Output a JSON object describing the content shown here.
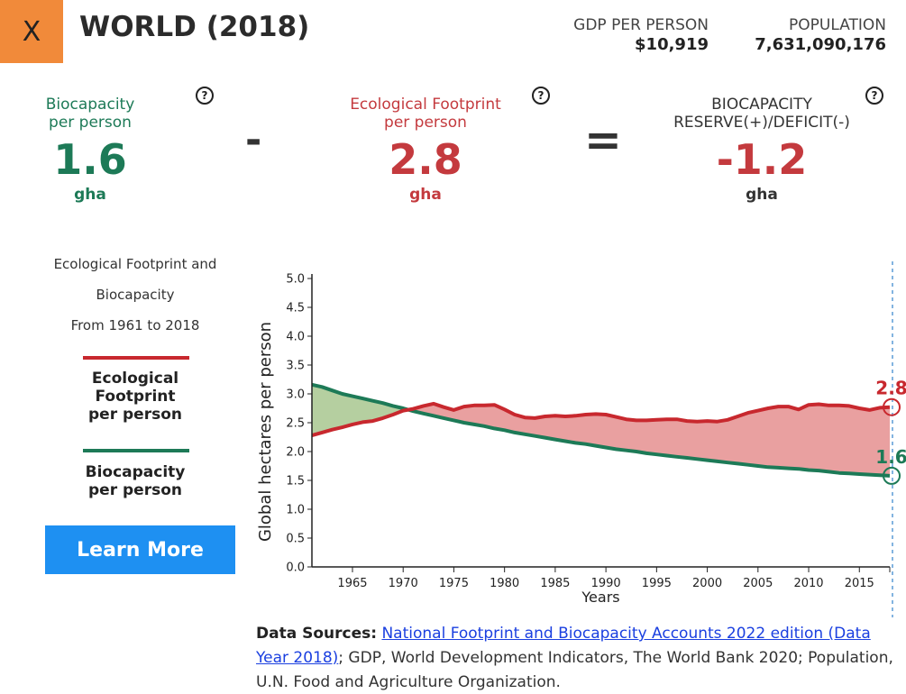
{
  "header": {
    "close_label": "X",
    "title": "WORLD (2018)",
    "gdp_label": "GDP PER PERSON",
    "gdp_value": "$10,919",
    "population_label": "POPULATION",
    "population_value": "7,631,090,176"
  },
  "metrics": {
    "biocapacity": {
      "label_line1": "Biocapacity",
      "label_line2": "per person",
      "value": "1.6",
      "unit": "gha"
    },
    "footprint": {
      "label_line1": "Ecological Footprint",
      "label_line2": "per person",
      "value": "2.8",
      "unit": "gha"
    },
    "reserve": {
      "label_line1": "BIOCAPACITY",
      "label_line2": "RESERVE(+)/DEFICIT(-)",
      "value": "-1.2",
      "unit": "gha"
    },
    "minus_symbol": "-",
    "equals_symbol": "=",
    "help_symbol": "?"
  },
  "sidebar": {
    "title_line1": "Ecological Footprint and",
    "title_line2": "Biocapacity",
    "title_line3": "From 1961 to 2018",
    "legend_footprint_line1": "Ecological",
    "legend_footprint_line2": "Footprint",
    "legend_footprint_line3": "per person",
    "legend_biocapacity_line1": "Biocapacity",
    "legend_biocapacity_line2": "per person",
    "learn_more_label": "Learn More"
  },
  "colors": {
    "footprint": "#c8282e",
    "footprint_fill": "#e9a0a0",
    "biocapacity": "#1d7a57",
    "biocapacity_fill": "#b5cfa0",
    "accent_close": "#f18a3a",
    "button": "#1e90f2"
  },
  "chart_data": {
    "type": "area",
    "xlabel": "Years",
    "ylabel": "Global hectares per person",
    "xlim": [
      1961,
      2018
    ],
    "ylim": [
      0,
      5.0
    ],
    "yticks": [
      "0.0",
      "0.5",
      "1.0",
      "1.5",
      "2.0",
      "2.5",
      "3.0",
      "3.5",
      "4.0",
      "4.5",
      "5.0"
    ],
    "xticks": [
      "1965",
      "1970",
      "1975",
      "1980",
      "1985",
      "1990",
      "1995",
      "2000",
      "2005",
      "2010",
      "2015"
    ],
    "x": [
      1961,
      1962,
      1963,
      1964,
      1965,
      1966,
      1967,
      1968,
      1969,
      1970,
      1971,
      1972,
      1973,
      1974,
      1975,
      1976,
      1977,
      1978,
      1979,
      1980,
      1981,
      1982,
      1983,
      1984,
      1985,
      1986,
      1987,
      1988,
      1989,
      1990,
      1991,
      1992,
      1993,
      1994,
      1995,
      1996,
      1997,
      1998,
      1999,
      2000,
      2001,
      2002,
      2003,
      2004,
      2005,
      2006,
      2007,
      2008,
      2009,
      2010,
      2011,
      2012,
      2013,
      2014,
      2015,
      2016,
      2017,
      2018
    ],
    "series": [
      {
        "name": "Ecological Footprint per person",
        "values": [
          2.28,
          2.33,
          2.38,
          2.42,
          2.47,
          2.51,
          2.53,
          2.58,
          2.64,
          2.71,
          2.74,
          2.79,
          2.83,
          2.77,
          2.72,
          2.78,
          2.8,
          2.8,
          2.81,
          2.73,
          2.64,
          2.59,
          2.58,
          2.61,
          2.62,
          2.61,
          2.62,
          2.64,
          2.65,
          2.64,
          2.6,
          2.56,
          2.54,
          2.54,
          2.55,
          2.56,
          2.56,
          2.53,
          2.52,
          2.53,
          2.52,
          2.55,
          2.61,
          2.67,
          2.71,
          2.75,
          2.78,
          2.78,
          2.73,
          2.81,
          2.82,
          2.8,
          2.8,
          2.79,
          2.75,
          2.72,
          2.76,
          2.77
        ]
      },
      {
        "name": "Biocapacity per person",
        "values": [
          3.16,
          3.12,
          3.06,
          3.0,
          2.96,
          2.92,
          2.88,
          2.84,
          2.79,
          2.75,
          2.7,
          2.66,
          2.62,
          2.58,
          2.54,
          2.5,
          2.47,
          2.44,
          2.4,
          2.37,
          2.33,
          2.3,
          2.27,
          2.24,
          2.21,
          2.18,
          2.15,
          2.13,
          2.1,
          2.07,
          2.04,
          2.02,
          2.0,
          1.97,
          1.95,
          1.93,
          1.91,
          1.89,
          1.87,
          1.85,
          1.83,
          1.81,
          1.79,
          1.77,
          1.75,
          1.73,
          1.72,
          1.71,
          1.7,
          1.68,
          1.67,
          1.65,
          1.63,
          1.62,
          1.61,
          1.6,
          1.59,
          1.58
        ]
      }
    ],
    "end_labels": {
      "footprint": "2.8",
      "biocapacity": "1.6"
    }
  },
  "sources": {
    "prefix": "Data Sources:",
    "link_text": "National Footprint and Biocapacity Accounts 2022 edition (Data Year 2018)",
    "rest": "; GDP, World Development Indicators, The World Bank 2020; Population, U.N. Food and Agriculture Organization."
  }
}
